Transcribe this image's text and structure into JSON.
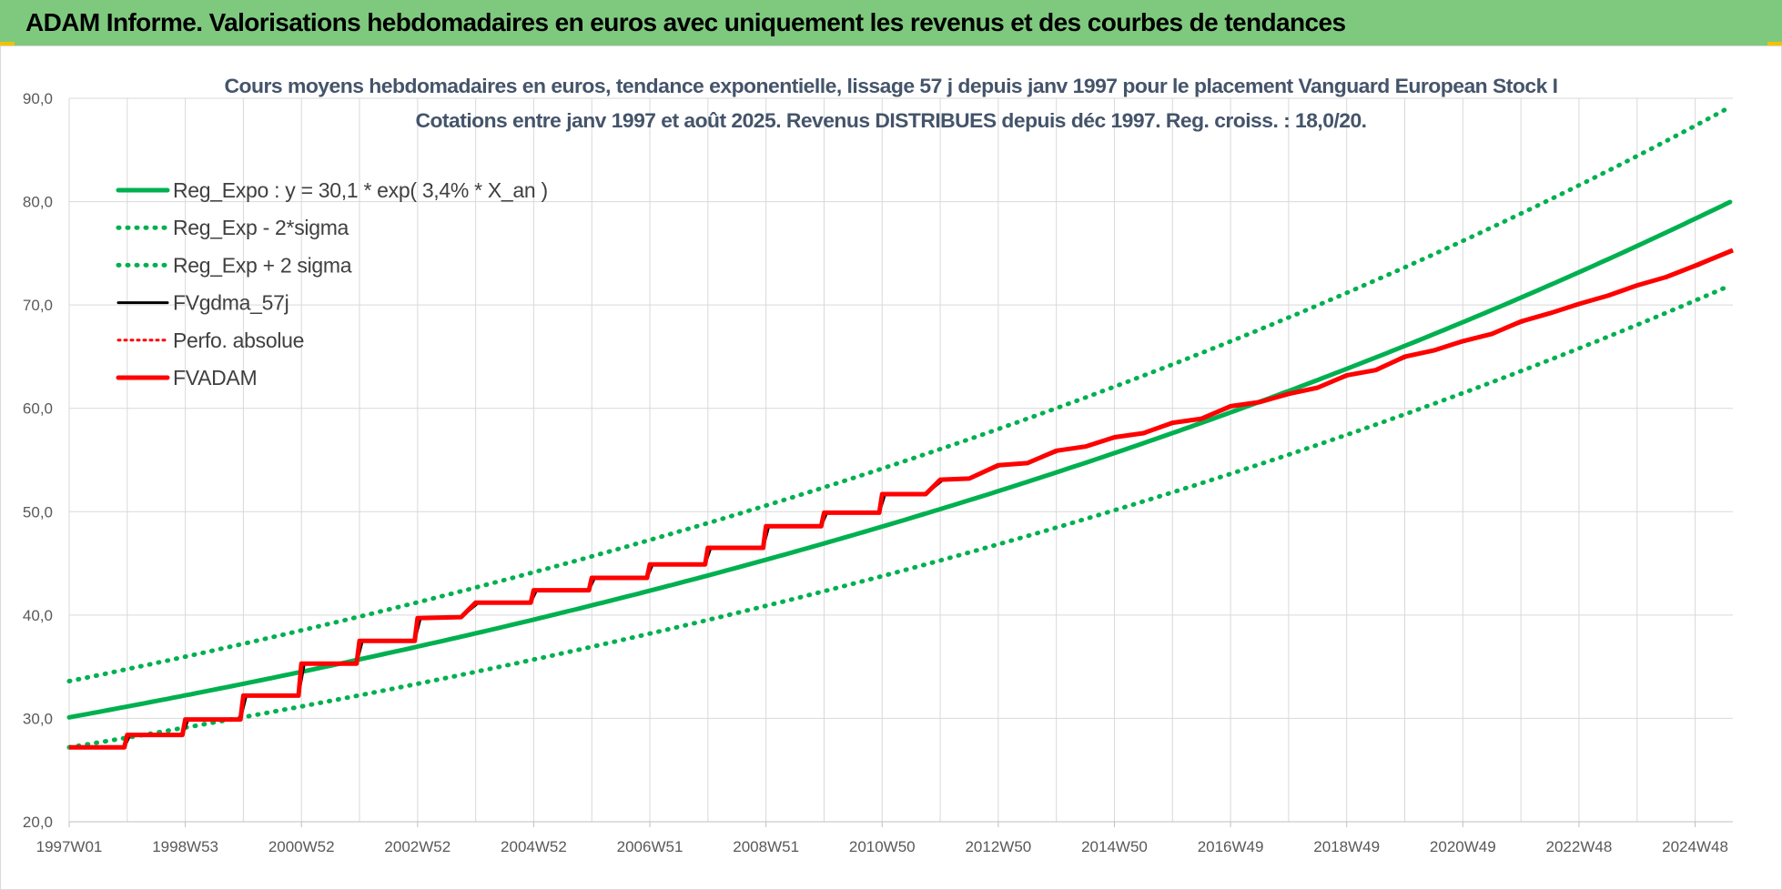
{
  "banner": {
    "title": "ADAM Informe. Valorisations hebdomadaires en euros avec uniquement les revenus et des courbes de tendances"
  },
  "colors": {
    "banner_bg": "#7ec97e",
    "trend": "#00b050",
    "fvgdma": "#000000",
    "perfo": "#ff0000",
    "fvadam": "#ff0000",
    "grid": "#d9d9d9"
  },
  "chart_data": {
    "type": "line",
    "title_lines": [
      "Cours moyens hebdomadaires en euros, tendance exponentielle, lissage 57 j depuis janv 1997 pour le placement Vanguard European Stock I",
      "Cotations entre janv 1997 et août 2025. Revenus DISTRIBUES depuis déc 1997. Reg. croiss. : 18,0/20."
    ],
    "y_ticks": [
      "20,0",
      "30,0",
      "40,0",
      "50,0",
      "60,0",
      "70,0",
      "80,0",
      "90,0"
    ],
    "ylim": [
      20,
      90
    ],
    "x_tick_labels": [
      "1997W01",
      "1998W53",
      "2000W52",
      "2002W52",
      "2004W52",
      "2006W51",
      "2008W51",
      "2010W50",
      "2012W50",
      "2014W50",
      "2016W49",
      "2018W49",
      "2020W49",
      "2022W48",
      "2024W48"
    ],
    "xlim": [
      1997.0,
      2025.65
    ],
    "grid": "on",
    "legend_position": "top-left",
    "legend": [
      {
        "label": "Reg_Expo : y = 30,1 * exp( 3,4% *  X_an )",
        "color": "#00b050",
        "style": "solid-thick"
      },
      {
        "label": "Reg_Exp - 2*sigma",
        "color": "#00b050",
        "style": "dotted"
      },
      {
        "label": "Reg_Exp + 2 sigma",
        "color": "#00b050",
        "style": "dotted"
      },
      {
        "label": "FVgdma_57j",
        "color": "#000000",
        "style": "solid"
      },
      {
        "label": "Perfo. absolue",
        "color": "#ff0000",
        "style": "dotted-thin"
      },
      {
        "label": "FVADAM",
        "color": "#ff0000",
        "style": "solid-thick"
      }
    ],
    "series": [
      {
        "name": "Reg_Expo : y = 30,1 * exp( 3,4% *  X_an )",
        "x": [
          1997.0,
          2000.0,
          2003.0,
          2006.0,
          2009.0,
          2012.0,
          2015.0,
          2018.0,
          2021.0,
          2024.0,
          2025.65
        ],
        "values": [
          30.1,
          33.3,
          36.9,
          40.8,
          45.3,
          50.1,
          55.6,
          61.6,
          68.2,
          75.6,
          80.1
        ]
      },
      {
        "name": "Reg_Exp - 2*sigma",
        "x": [
          1997.0,
          2000.0,
          2003.0,
          2006.0,
          2009.0,
          2012.0,
          2015.0,
          2018.0,
          2021.0,
          2024.0,
          2025.65
        ],
        "values": [
          27.2,
          30.1,
          33.3,
          36.9,
          40.9,
          45.3,
          50.2,
          55.6,
          61.6,
          68.2,
          72.0
        ]
      },
      {
        "name": "Reg_Exp + 2 sigma",
        "x": [
          1997.0,
          2000.0,
          2003.0,
          2006.0,
          2009.0,
          2012.0,
          2015.0,
          2018.0,
          2021.0,
          2024.0,
          2025.65
        ],
        "values": [
          33.6,
          37.2,
          41.2,
          45.6,
          50.5,
          55.9,
          62.0,
          68.7,
          76.1,
          84.3,
          89.3
        ]
      },
      {
        "name": "FVADAM",
        "x": [
          1997.0,
          1997.95,
          1998.0,
          1998.95,
          1999.0,
          1999.95,
          2000.0,
          2000.95,
          2001.0,
          2001.95,
          2002.0,
          2002.95,
          2003.0,
          2003.75,
          2004.0,
          2004.95,
          2005.0,
          2005.95,
          2006.0,
          2006.95,
          2007.0,
          2007.95,
          2008.0,
          2008.95,
          2009.0,
          2009.95,
          2010.0,
          2010.95,
          2011.0,
          2011.75,
          2012.0,
          2012.5,
          2013.0,
          2013.5,
          2014.0,
          2014.5,
          2015.0,
          2015.5,
          2016.0,
          2016.5,
          2017.0,
          2017.5,
          2018.0,
          2018.5,
          2019.0,
          2019.5,
          2020.0,
          2020.5,
          2021.0,
          2021.5,
          2022.0,
          2022.5,
          2023.0,
          2023.5,
          2024.0,
          2024.5,
          2025.0,
          2025.65
        ],
        "values": [
          27.2,
          27.2,
          28.4,
          28.4,
          29.9,
          29.9,
          32.2,
          32.2,
          35.3,
          35.3,
          37.5,
          37.5,
          39.7,
          39.8,
          41.2,
          41.2,
          42.4,
          42.4,
          43.6,
          43.6,
          44.9,
          44.9,
          46.5,
          46.5,
          48.6,
          48.6,
          49.9,
          49.9,
          51.7,
          51.7,
          53.1,
          53.2,
          54.5,
          54.7,
          55.9,
          56.3,
          57.2,
          57.6,
          58.6,
          59.0,
          60.2,
          60.6,
          61.4,
          62.0,
          63.2,
          63.7,
          65.0,
          65.6,
          66.5,
          67.2,
          68.4,
          69.2,
          70.1,
          70.9,
          71.9,
          72.7,
          73.8,
          75.3
        ]
      },
      {
        "name": "FVgdma_57j",
        "x": [
          1997.0,
          1997.95,
          1998.05,
          1998.95,
          1999.05,
          1999.95,
          2000.05,
          2000.95,
          2001.05,
          2001.95,
          2002.05,
          2002.95,
          2003.05,
          2003.75,
          2004.05,
          2004.95,
          2005.05,
          2005.95,
          2006.05,
          2006.95,
          2007.05,
          2007.95,
          2008.05,
          2008.95,
          2009.05,
          2009.95,
          2010.05,
          2010.95,
          2011.05,
          2011.75,
          2012.05,
          2012.5,
          2013.05,
          2013.5,
          2014.05,
          2014.5,
          2015.05,
          2015.5,
          2016.05,
          2016.5,
          2017.05,
          2017.5,
          2018.05,
          2018.5,
          2019.05,
          2019.5,
          2020.05,
          2020.5,
          2021.05,
          2021.5,
          2022.05,
          2022.5,
          2023.05,
          2023.5,
          2024.05,
          2024.5,
          2025.05,
          2025.65
        ],
        "values": [
          27.2,
          27.2,
          28.4,
          28.4,
          29.9,
          29.9,
          32.2,
          32.2,
          35.3,
          35.3,
          37.5,
          37.5,
          39.7,
          39.8,
          41.2,
          41.2,
          42.4,
          42.4,
          43.6,
          43.6,
          44.9,
          44.9,
          46.5,
          46.5,
          48.6,
          48.6,
          49.9,
          49.9,
          51.7,
          51.7,
          53.1,
          53.2,
          54.5,
          54.7,
          55.9,
          56.3,
          57.2,
          57.6,
          58.6,
          59.0,
          60.2,
          60.6,
          61.4,
          62.0,
          63.2,
          63.7,
          65.0,
          65.6,
          66.5,
          67.2,
          68.4,
          69.2,
          70.1,
          70.9,
          71.9,
          72.7,
          73.8,
          75.3
        ]
      }
    ]
  }
}
